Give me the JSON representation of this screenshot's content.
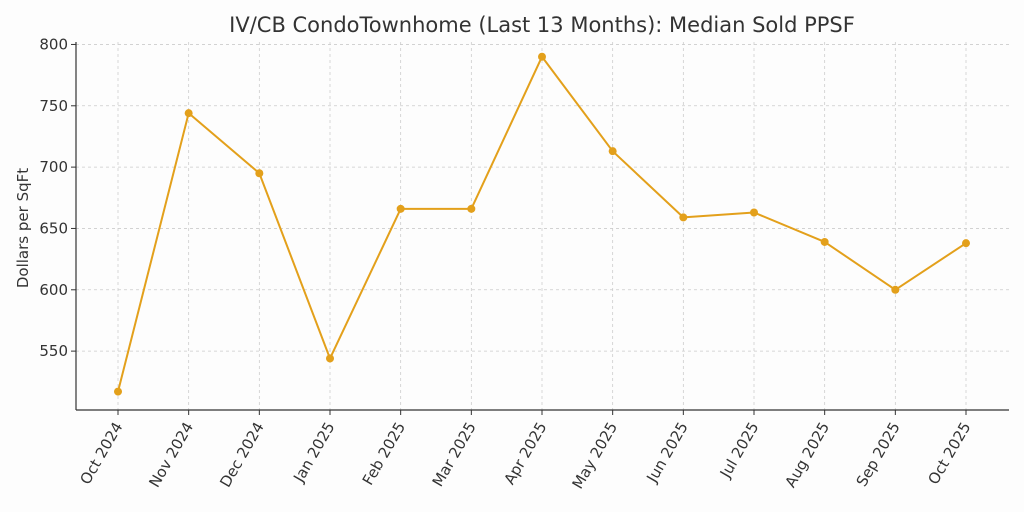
{
  "chart_data": {
    "type": "line",
    "title": "IV/CB CondoTownhome (Last 13 Months): Median Sold PPSF",
    "xlabel": "",
    "ylabel": "Dollars per SqFt",
    "categories": [
      "Oct 2024",
      "Nov 2024",
      "Dec 2024",
      "Jan 2025",
      "Feb 2025",
      "Mar 2025",
      "Apr 2025",
      "May 2025",
      "Jun 2025",
      "Jul 2025",
      "Aug 2025",
      "Sep 2025",
      "Oct 2025"
    ],
    "series": [
      {
        "values": [
          517,
          744,
          695,
          544,
          666,
          666,
          790,
          713,
          659,
          663,
          639,
          600,
          638
        ],
        "color": "#e3a01b"
      }
    ],
    "yticks": [
      550,
      600,
      650,
      700,
      750,
      800
    ],
    "ylim": [
      502,
      802
    ],
    "grid": true,
    "legend": "none"
  }
}
